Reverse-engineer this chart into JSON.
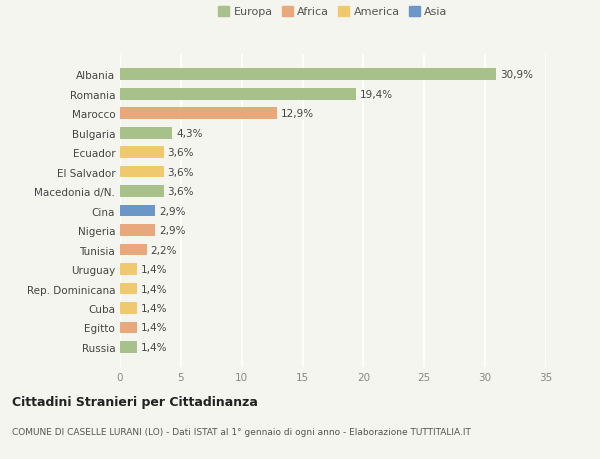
{
  "categories": [
    "Albania",
    "Romania",
    "Marocco",
    "Bulgaria",
    "Ecuador",
    "El Salvador",
    "Macedonia d/N.",
    "Cina",
    "Nigeria",
    "Tunisia",
    "Uruguay",
    "Rep. Dominicana",
    "Cuba",
    "Egitto",
    "Russia"
  ],
  "values": [
    30.9,
    19.4,
    12.9,
    4.3,
    3.6,
    3.6,
    3.6,
    2.9,
    2.9,
    2.2,
    1.4,
    1.4,
    1.4,
    1.4,
    1.4
  ],
  "labels": [
    "30,9%",
    "19,4%",
    "12,9%",
    "4,3%",
    "3,6%",
    "3,6%",
    "3,6%",
    "2,9%",
    "2,9%",
    "2,2%",
    "1,4%",
    "1,4%",
    "1,4%",
    "1,4%",
    "1,4%"
  ],
  "continents": [
    "Europa",
    "Europa",
    "Africa",
    "Europa",
    "America",
    "America",
    "Europa",
    "Asia",
    "Africa",
    "Africa",
    "America",
    "America",
    "America",
    "Africa",
    "Europa"
  ],
  "continent_colors": {
    "Europa": "#a8c08a",
    "Africa": "#e8a87c",
    "America": "#f0c96e",
    "Asia": "#6a96c8"
  },
  "legend_labels": [
    "Europa",
    "Africa",
    "America",
    "Asia"
  ],
  "legend_colors": [
    "#a8c08a",
    "#e8a87c",
    "#f0c96e",
    "#6a96c8"
  ],
  "xlim": [
    0,
    35
  ],
  "xticks": [
    0,
    5,
    10,
    15,
    20,
    25,
    30,
    35
  ],
  "title": "Cittadini Stranieri per Cittadinanza",
  "subtitle": "COMUNE DI CASELLE LURANI (LO) - Dati ISTAT al 1° gennaio di ogni anno - Elaborazione TUTTITALIA.IT",
  "background_color": "#f5f5f0",
  "bar_height": 0.6,
  "grid_color": "#ffffff",
  "title_fontsize": 9,
  "subtitle_fontsize": 6.5,
  "label_fontsize": 7.5,
  "tick_fontsize": 7.5,
  "legend_fontsize": 8
}
